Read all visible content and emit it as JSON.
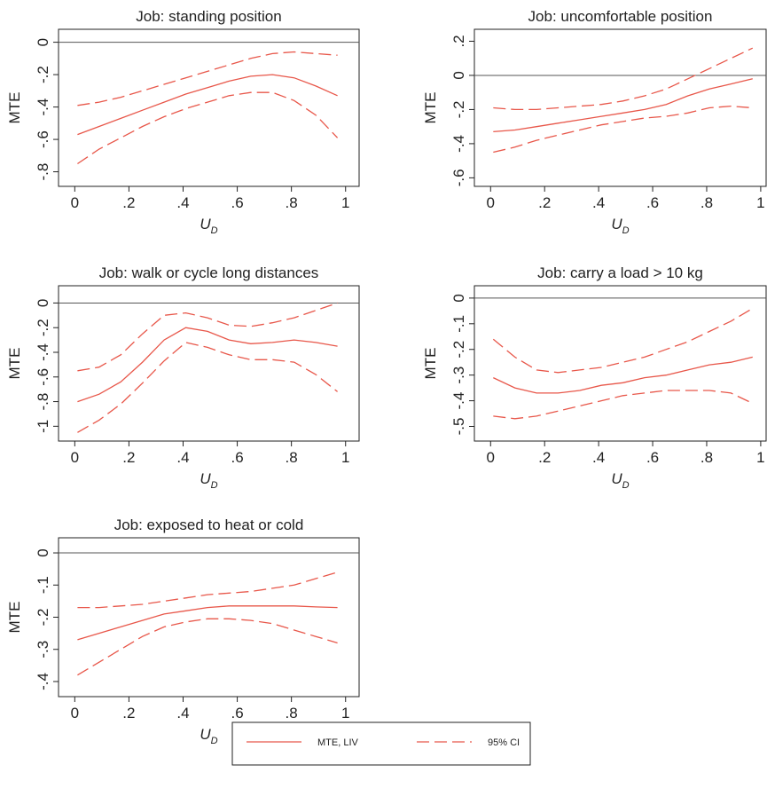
{
  "chart_data": [
    {
      "type": "line",
      "title": "Job: standing position",
      "ylabel": "MTE",
      "xlabel": {
        "text": "U",
        "subscript": "D"
      },
      "x": [
        0.01,
        0.09,
        0.17,
        0.25,
        0.33,
        0.41,
        0.49,
        0.57,
        0.65,
        0.73,
        0.81,
        0.89,
        0.97
      ],
      "values": [
        -0.57,
        -0.52,
        -0.47,
        -0.42,
        -0.37,
        -0.32,
        -0.28,
        -0.24,
        -0.21,
        -0.2,
        -0.22,
        -0.27,
        -0.33
      ],
      "ci_upper": [
        -0.39,
        -0.37,
        -0.34,
        -0.3,
        -0.26,
        -0.22,
        -0.18,
        -0.14,
        -0.1,
        -0.07,
        -0.06,
        -0.07,
        -0.08
      ],
      "ci_lower": [
        -0.75,
        -0.66,
        -0.59,
        -0.52,
        -0.46,
        -0.41,
        -0.37,
        -0.33,
        -0.31,
        -0.31,
        -0.36,
        -0.45,
        -0.59
      ],
      "color": "#e8574a",
      "refline": 0,
      "xlim": [
        -0.06,
        1.05
      ],
      "ylim": [
        -0.89,
        0.08
      ],
      "xticks": [
        0,
        {
          "value": 0.2,
          "label": ".2"
        },
        {
          "value": 0.4,
          "label": ".4"
        },
        {
          "value": 0.6,
          "label": ".6"
        },
        {
          "value": 0.8,
          "label": ".8"
        },
        1
      ],
      "yticks": [
        {
          "value": -0.8,
          "label": "-.8"
        },
        {
          "value": -0.6,
          "label": "-.6"
        },
        {
          "value": -0.4,
          "label": "-.4"
        },
        {
          "value": -0.2,
          "label": "-.2"
        },
        0
      ]
    },
    {
      "type": "line",
      "title": "Job: uncomfortable position",
      "ylabel": "MTE",
      "xlabel": {
        "text": "U",
        "subscript": "D"
      },
      "x": [
        0.01,
        0.09,
        0.17,
        0.25,
        0.33,
        0.41,
        0.49,
        0.57,
        0.65,
        0.73,
        0.81,
        0.89,
        0.97
      ],
      "values": [
        -0.33,
        -0.32,
        -0.3,
        -0.28,
        -0.26,
        -0.24,
        -0.22,
        -0.2,
        -0.17,
        -0.12,
        -0.08,
        -0.05,
        -0.02
      ],
      "ci_upper": [
        -0.19,
        -0.2,
        -0.2,
        -0.19,
        -0.18,
        -0.17,
        -0.15,
        -0.12,
        -0.08,
        -0.02,
        0.04,
        0.1,
        0.16
      ],
      "ci_lower": [
        -0.45,
        -0.42,
        -0.38,
        -0.35,
        -0.32,
        -0.29,
        -0.27,
        -0.25,
        -0.24,
        -0.22,
        -0.19,
        -0.18,
        -0.19
      ],
      "color": "#e8574a",
      "refline": 0,
      "xlim": [
        -0.06,
        1.02
      ],
      "ylim": [
        -0.65,
        0.27
      ],
      "xticks": [
        0,
        {
          "value": 0.2,
          "label": ".2"
        },
        {
          "value": 0.4,
          "label": ".4"
        },
        {
          "value": 0.6,
          "label": ".6"
        },
        {
          "value": 0.8,
          "label": ".8"
        },
        1
      ],
      "yticks": [
        {
          "value": -0.6,
          "label": "-.6"
        },
        {
          "value": -0.4,
          "label": "-.4"
        },
        {
          "value": -0.2,
          "label": "-.2"
        },
        0,
        {
          "value": 0.2,
          "label": ".2"
        }
      ]
    },
    {
      "type": "line",
      "title": "Job: walk or cycle long distances",
      "ylabel": "MTE",
      "xlabel": {
        "text": "U",
        "subscript": "D"
      },
      "x": [
        0.01,
        0.09,
        0.17,
        0.25,
        0.33,
        0.41,
        0.49,
        0.57,
        0.65,
        0.73,
        0.81,
        0.89,
        0.97
      ],
      "values": [
        -0.8,
        -0.74,
        -0.64,
        -0.48,
        -0.3,
        -0.2,
        -0.23,
        -0.3,
        -0.33,
        -0.32,
        -0.3,
        -0.32,
        -0.35
      ],
      "ci_upper": [
        -0.55,
        -0.52,
        -0.42,
        -0.25,
        -0.1,
        -0.08,
        -0.12,
        -0.18,
        -0.19,
        -0.16,
        -0.12,
        -0.06,
        0
      ],
      "ci_lower": [
        -1.05,
        -0.95,
        -0.82,
        -0.65,
        -0.47,
        -0.32,
        -0.36,
        -0.42,
        -0.46,
        -0.46,
        -0.48,
        -0.58,
        -0.72
      ],
      "color": "#e8574a",
      "refline": 0,
      "xlim": [
        -0.06,
        1.05
      ],
      "ylim": [
        -1.12,
        0.14
      ],
      "xticks": [
        0,
        {
          "value": 0.2,
          "label": ".2"
        },
        {
          "value": 0.4,
          "label": ".4"
        },
        {
          "value": 0.6,
          "label": ".6"
        },
        {
          "value": 0.8,
          "label": ".8"
        },
        1
      ],
      "yticks": [
        -1,
        {
          "value": -0.8,
          "label": "-.8"
        },
        {
          "value": -0.6,
          "label": "-.6"
        },
        {
          "value": -0.4,
          "label": "-.4"
        },
        {
          "value": -0.2,
          "label": "-.2"
        },
        0
      ]
    },
    {
      "type": "line",
      "title": "Job: carry a load > 10 kg",
      "ylabel": "MTE",
      "xlabel": {
        "text": "U",
        "subscript": "D"
      },
      "x": [
        0.01,
        0.09,
        0.17,
        0.25,
        0.33,
        0.41,
        0.49,
        0.57,
        0.65,
        0.73,
        0.81,
        0.89,
        0.97
      ],
      "values": [
        -0.31,
        -0.35,
        -0.37,
        -0.37,
        -0.36,
        -0.34,
        -0.33,
        -0.31,
        -0.3,
        -0.28,
        -0.26,
        -0.25,
        -0.23
      ],
      "ci_upper": [
        -0.16,
        -0.23,
        -0.28,
        -0.29,
        -0.28,
        -0.27,
        -0.25,
        -0.23,
        -0.2,
        -0.17,
        -0.13,
        -0.09,
        -0.04
      ],
      "ci_lower": [
        -0.46,
        -0.47,
        -0.46,
        -0.44,
        -0.42,
        -0.4,
        -0.38,
        -0.37,
        -0.36,
        -0.36,
        -0.36,
        -0.37,
        -0.41
      ],
      "color": "#e8574a",
      "refline": 0,
      "xlim": [
        -0.06,
        1.02
      ],
      "ylim": [
        -0.557,
        0.048
      ],
      "xticks": [
        0,
        {
          "value": 0.2,
          "label": ".2"
        },
        {
          "value": 0.4,
          "label": ".4"
        },
        {
          "value": 0.6,
          "label": ".6"
        },
        {
          "value": 0.8,
          "label": ".8"
        },
        1
      ],
      "yticks": [
        {
          "value": -0.5,
          "label": "-.5"
        },
        {
          "value": -0.4,
          "label": "-.4"
        },
        {
          "value": -0.3,
          "label": "-.3"
        },
        {
          "value": -0.2,
          "label": "-.2"
        },
        {
          "value": -0.1,
          "label": "-.1"
        },
        0
      ]
    },
    {
      "type": "line",
      "title": "Job: exposed to heat or cold",
      "ylabel": "MTE",
      "xlabel": {
        "text": "U",
        "subscript": "D"
      },
      "x": [
        0.01,
        0.09,
        0.17,
        0.25,
        0.33,
        0.41,
        0.49,
        0.57,
        0.65,
        0.73,
        0.81,
        0.89,
        0.97
      ],
      "values": [
        -0.27,
        -0.25,
        -0.23,
        -0.21,
        -0.19,
        -0.18,
        -0.17,
        -0.165,
        -0.165,
        -0.165,
        -0.165,
        -0.168,
        -0.17
      ],
      "ci_upper": [
        -0.17,
        -0.17,
        -0.165,
        -0.16,
        -0.15,
        -0.14,
        -0.13,
        -0.125,
        -0.12,
        -0.11,
        -0.1,
        -0.08,
        -0.06
      ],
      "ci_lower": [
        -0.38,
        -0.34,
        -0.3,
        -0.26,
        -0.23,
        -0.215,
        -0.205,
        -0.205,
        -0.21,
        -0.22,
        -0.24,
        -0.26,
        -0.28
      ],
      "color": "#e8574a",
      "refline": 0,
      "xlim": [
        -0.06,
        1.05
      ],
      "ylim": [
        -0.447,
        0.047
      ],
      "xticks": [
        0,
        {
          "value": 0.2,
          "label": ".2"
        },
        {
          "value": 0.4,
          "label": ".4"
        },
        {
          "value": 0.6,
          "label": ".6"
        },
        {
          "value": 0.8,
          "label": ".8"
        },
        1
      ],
      "yticks": [
        {
          "value": -0.4,
          "label": "-.4"
        },
        {
          "value": -0.3,
          "label": "-.3"
        },
        {
          "value": -0.2,
          "label": "-.2"
        },
        {
          "value": -0.1,
          "label": "-.1"
        },
        0
      ]
    }
  ],
  "legend": [
    {
      "name": "MTE, LIV",
      "color": "#e8574a",
      "dashed": false
    },
    {
      "name": "95% CI",
      "color": "#e8574a",
      "dashed": true
    }
  ]
}
